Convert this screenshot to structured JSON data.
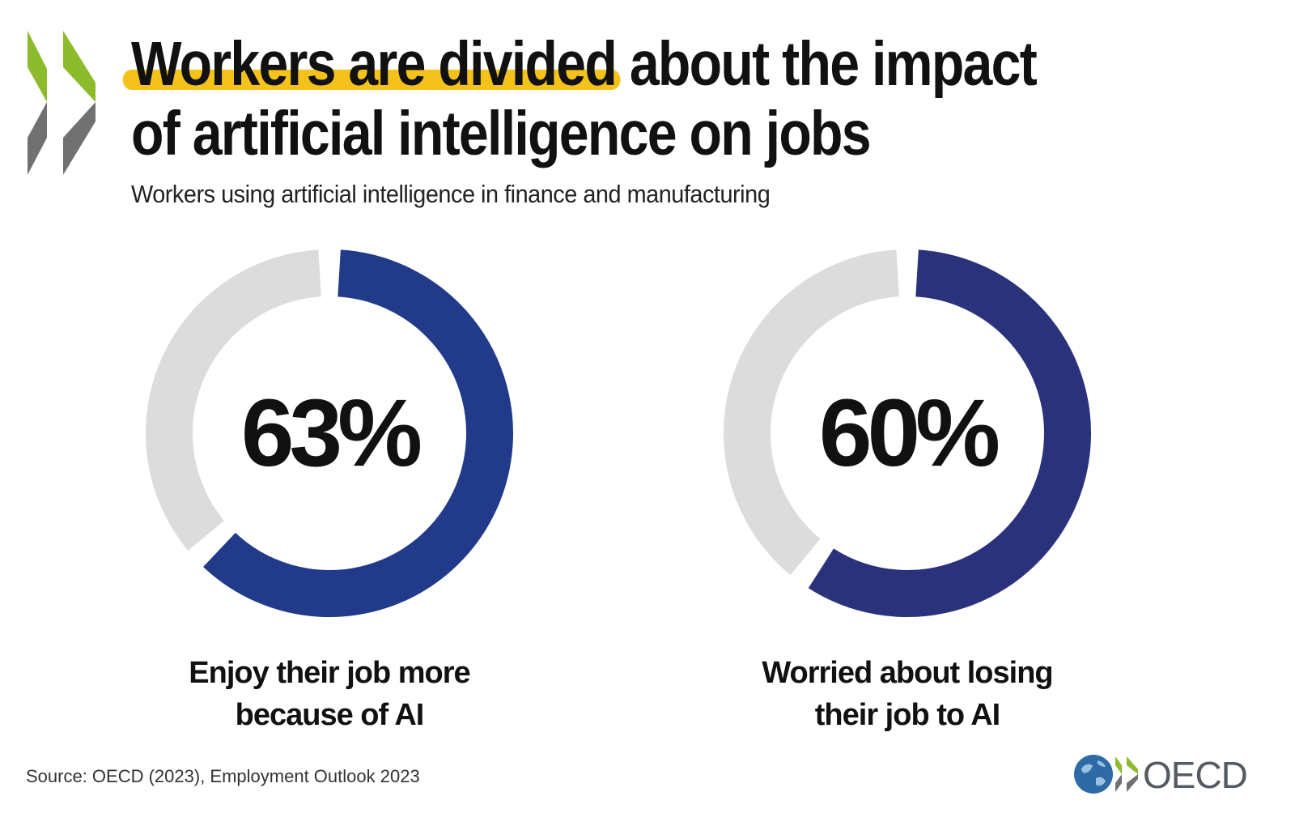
{
  "title": {
    "highlight": "Workers are divided",
    "rest_line1": "about the impact",
    "line2": "of artificial intelligence on jobs"
  },
  "subtitle": "Workers using artificial intelligence in finance and manufacturing",
  "chart_data": [
    {
      "type": "pie",
      "value_label": "63%",
      "slices": [
        {
          "label": "Enjoy their job more because of AI",
          "value": 63
        },
        {
          "label": "",
          "value": 37
        }
      ],
      "caption_lines": [
        "Enjoy their job more",
        "because of AI"
      ]
    },
    {
      "type": "pie",
      "value_label": "60%",
      "slices": [
        {
          "label": "Worried about losing their job to AI",
          "value": 60
        },
        {
          "label": "",
          "value": 40
        }
      ],
      "caption_lines": [
        "Worried about losing",
        "their job to AI"
      ]
    }
  ],
  "colors": {
    "fill_1": "#213a8a",
    "fill_2": "#2b327c",
    "remainder": "#dcdcdc",
    "highlight": "#f4c21b",
    "chevron_green": "#8cbb2b",
    "chevron_grey": "#717171"
  },
  "source": "Source: OECD (2023), Employment Outlook 2023",
  "logo": {
    "text": "OECD",
    "icon": "oecd-globe-icon"
  }
}
